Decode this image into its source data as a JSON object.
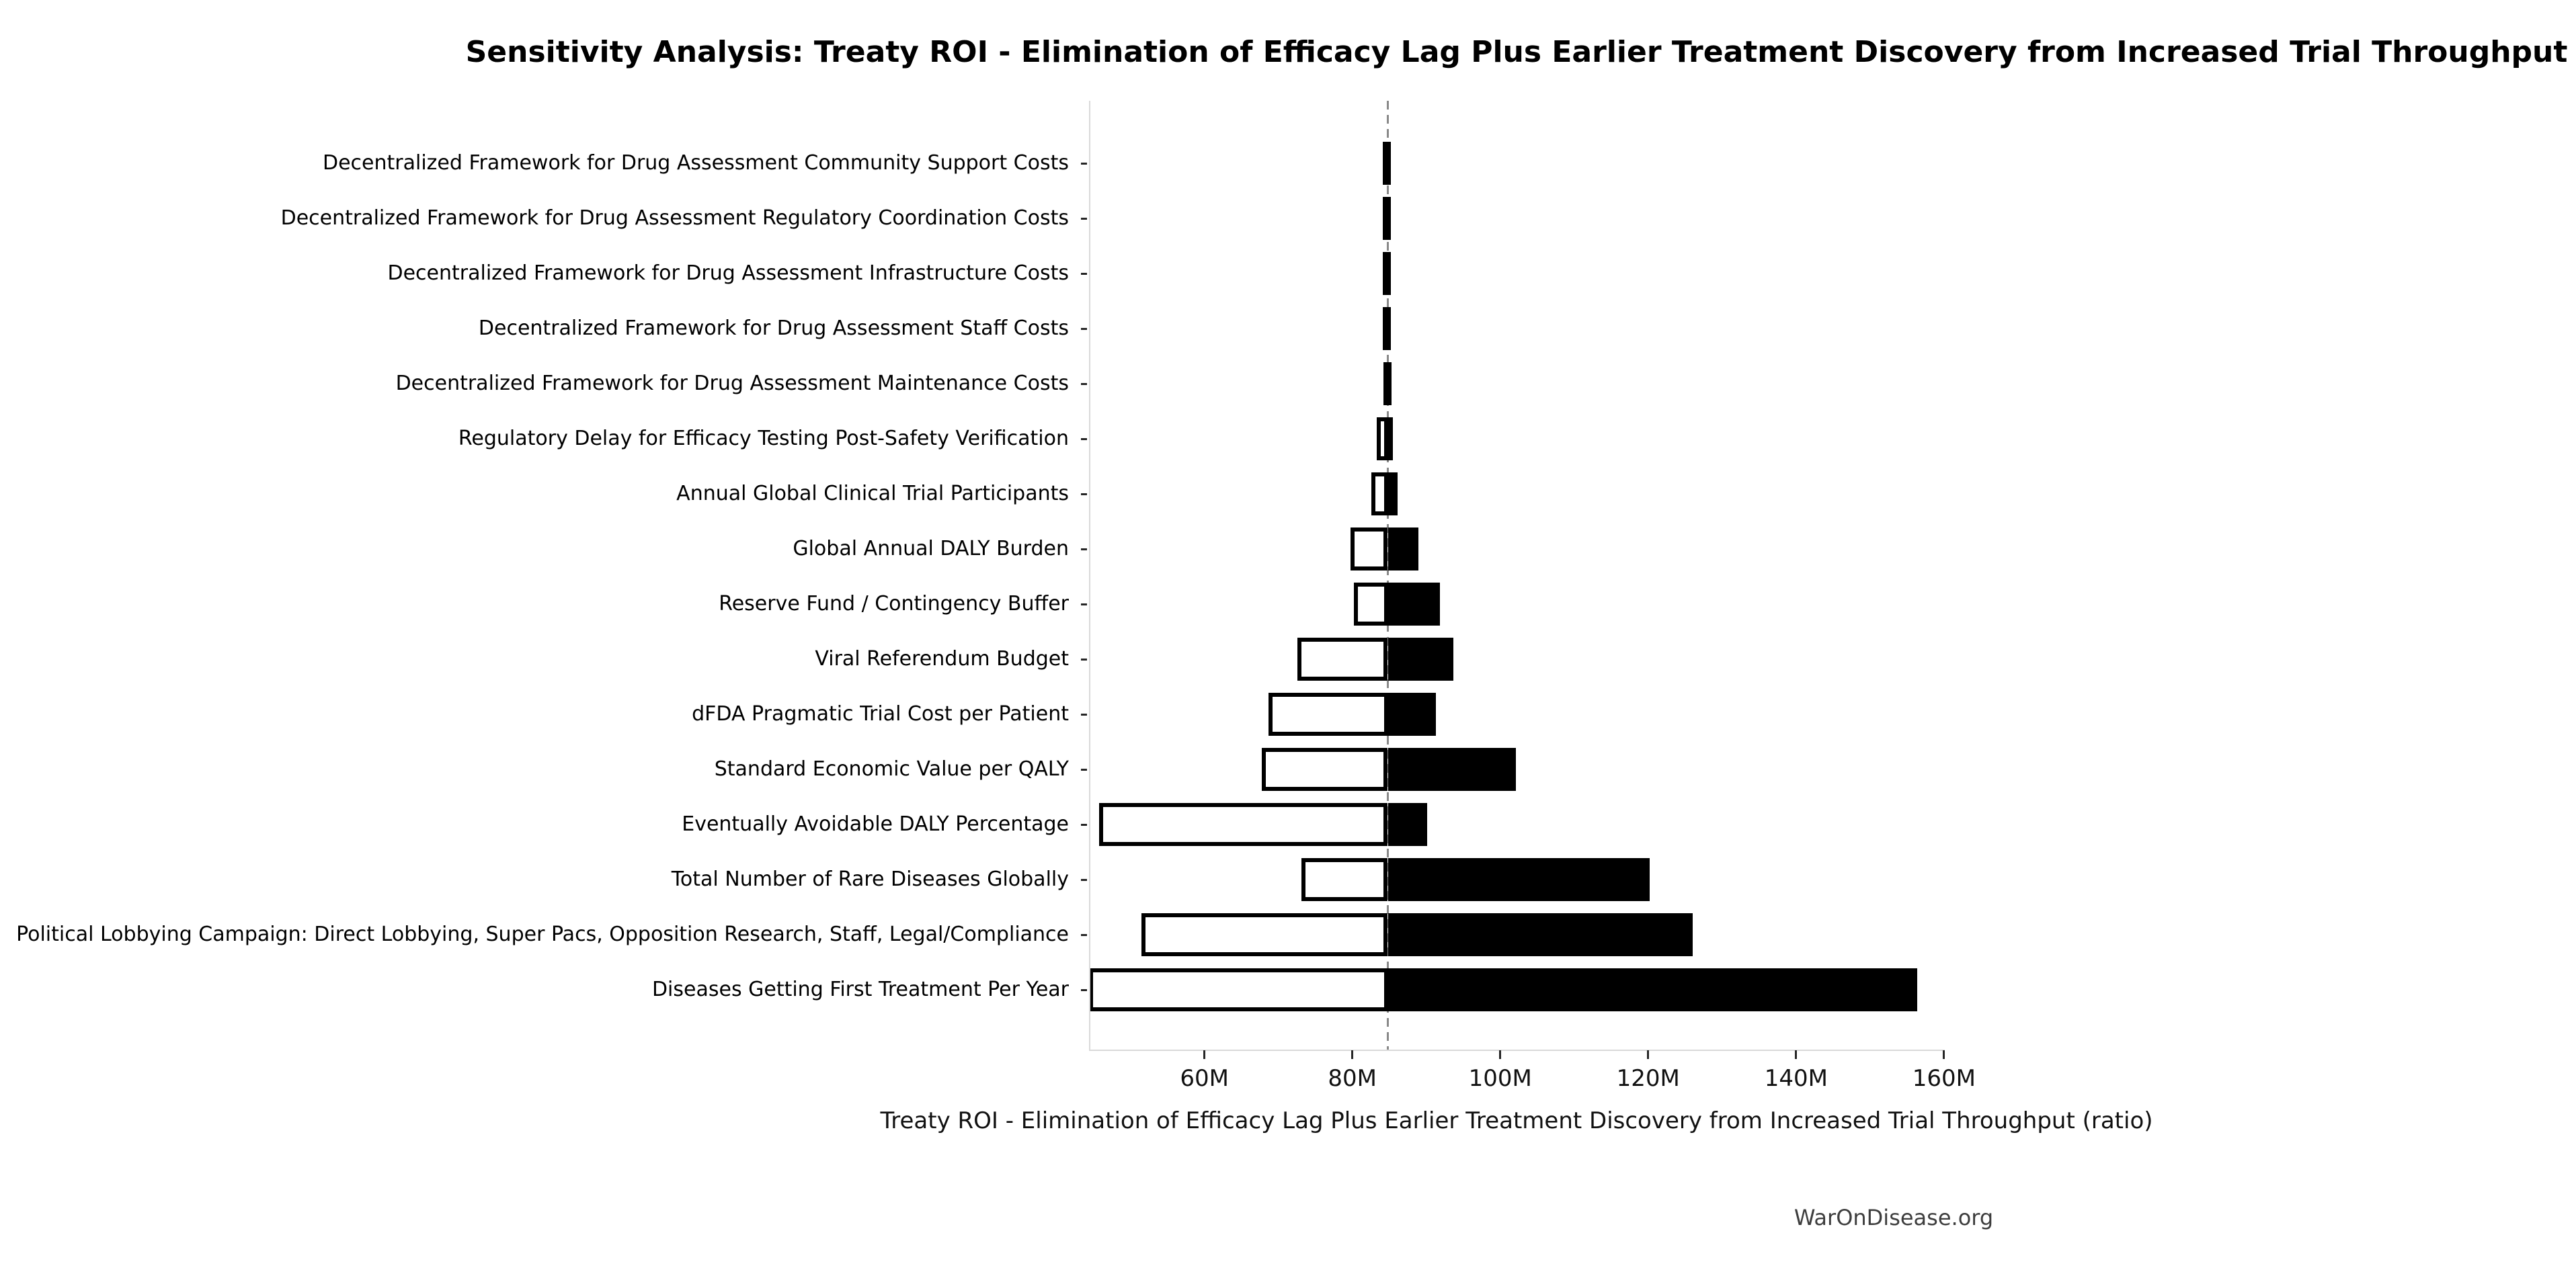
{
  "title": "Sensitivity Analysis: Treaty ROI - Elimination of Efficacy Lag Plus Earlier Treatment Discovery from Increased Trial Throughput",
  "footer": "WarOnDisease.org",
  "chart_data": {
    "type": "bar",
    "subtype": "tornado-sensitivity",
    "orientation": "horizontal",
    "title": "Sensitivity Analysis: Treaty ROI - Elimination of Efficacy Lag Plus Earlier Treatment Discovery from Increased Trial Throughput",
    "xlabel": "Treaty ROI - Elimination of Efficacy Lag Plus Earlier Treatment Discovery from Increased Trial Throughput (ratio)",
    "ylabel": "",
    "x_unit": "M",
    "xlim": [
      44.4,
      160.1
    ],
    "baseline_value": 84.8,
    "grid": false,
    "legend": null,
    "bar_colors": {
      "low_case": "#ffffff",
      "high_case": "#000000"
    },
    "baseline_style": "gray dashed vertical line",
    "x_ticks": [
      {
        "value": 60,
        "label": "60M"
      },
      {
        "value": 80,
        "label": "80M"
      },
      {
        "value": 100,
        "label": "100M"
      },
      {
        "value": 120,
        "label": "120M"
      },
      {
        "value": 140,
        "label": "140M"
      },
      {
        "value": 160,
        "label": "160M"
      }
    ],
    "categories": [
      "Decentralized Framework for Drug Assessment Community Support Costs",
      "Decentralized Framework for Drug Assessment Regulatory Coordination Costs",
      "Decentralized Framework for Drug Assessment Infrastructure Costs",
      "Decentralized Framework for Drug Assessment Staff Costs",
      "Decentralized Framework for Drug Assessment Maintenance Costs",
      "Regulatory Delay for Efficacy Testing Post-Safety Verification",
      "Annual Global Clinical Trial Participants",
      "Global Annual DALY Burden",
      "Reserve Fund / Contingency Buffer",
      "Viral Referendum Budget",
      "dFDA Pragmatic Trial Cost per Patient",
      "Standard Economic Value per QALY",
      "Eventually Avoidable DALY Percentage",
      "Total Number of Rare Diseases Globally",
      "Political Lobbying Campaign: Direct Lobbying, Super Pacs, Opposition Research, Staff, Legal/Compliance",
      "Diseases Getting First Treatment Per Year"
    ],
    "series": [
      {
        "name": "low_case_value_M",
        "values": [
          84.1,
          84.1,
          84.1,
          84.1,
          84.2,
          83.3,
          82.6,
          79.8,
          80.2,
          72.6,
          68.7,
          67.8,
          45.8,
          73.1,
          51.5,
          44.4
        ]
      },
      {
        "name": "high_case_value_M",
        "values": [
          85.0,
          85.0,
          85.0,
          85.0,
          84.9,
          85.5,
          86.1,
          88.9,
          91.8,
          93.7,
          91.3,
          102.1,
          90.1,
          120.2,
          126.0,
          156.4
        ]
      }
    ]
  }
}
